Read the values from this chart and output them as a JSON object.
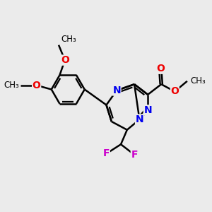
{
  "bg_color": "#ebebeb",
  "bond_color": "#000000",
  "nitrogen_color": "#0000ee",
  "oxygen_color": "#ee0000",
  "fluorine_color": "#cc00cc",
  "bond_width": 1.8,
  "dbo": 0.055,
  "font_size": 10,
  "fig_size": [
    3.0,
    3.0
  ],
  "dpi": 100,
  "xlim": [
    0,
    10
  ],
  "ylim": [
    0,
    10
  ]
}
